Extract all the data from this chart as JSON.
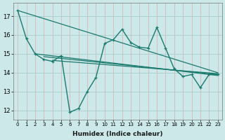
{
  "xlabel": "Humidex (Indice chaleur)",
  "background_color": "#cce8e8",
  "grid_color": "#aacccc",
  "line_color": "#1a7a6e",
  "x_values": [
    0,
    1,
    2,
    3,
    4,
    5,
    6,
    7,
    8,
    9,
    10,
    11,
    12,
    13,
    14,
    15,
    16,
    17,
    18,
    19,
    20,
    21,
    22,
    23
  ],
  "main_line": [
    17.3,
    15.8,
    15.0,
    14.7,
    14.6,
    14.9,
    11.9,
    12.1,
    13.0,
    13.75,
    15.55,
    15.75,
    16.3,
    15.6,
    15.35,
    15.3,
    16.4,
    15.3,
    14.2,
    13.8,
    13.9,
    13.2,
    13.9,
    13.9
  ],
  "trend_lines": [
    {
      "x": [
        0,
        23
      ],
      "y": [
        17.3,
        14.0
      ]
    },
    {
      "x": [
        2,
        23
      ],
      "y": [
        15.0,
        13.85
      ]
    },
    {
      "x": [
        3,
        23
      ],
      "y": [
        14.85,
        13.9
      ]
    },
    {
      "x": [
        4,
        23
      ],
      "y": [
        14.65,
        13.95
      ]
    }
  ],
  "ylim": [
    11.5,
    17.7
  ],
  "yticks": [
    12,
    13,
    14,
    15,
    16,
    17
  ],
  "xticks": [
    0,
    1,
    2,
    3,
    4,
    5,
    6,
    7,
    8,
    9,
    10,
    11,
    12,
    13,
    14,
    15,
    16,
    17,
    18,
    19,
    20,
    21,
    22,
    23
  ]
}
